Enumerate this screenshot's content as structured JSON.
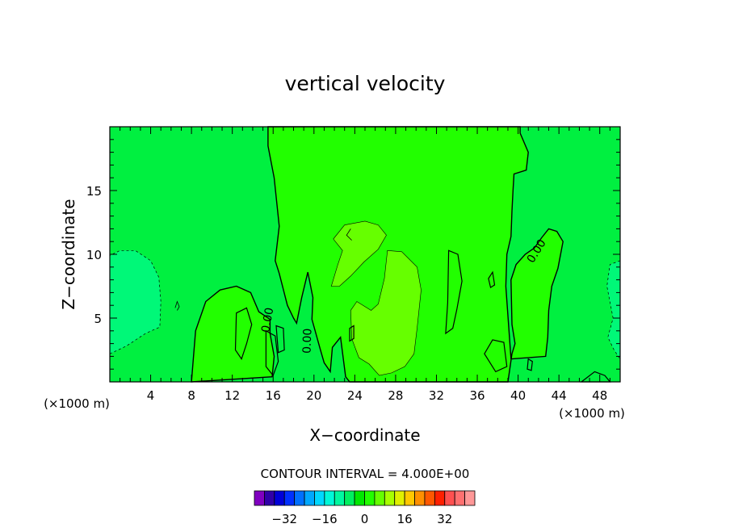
{
  "chart_data": {
    "type": "contour",
    "title": "vertical velocity",
    "xlabel": "X−coordinate",
    "ylabel": "Z−coordinate",
    "x_unit_left": "(×1000 m)",
    "x_unit_right": "(×1000 m)",
    "xlim": [
      0,
      50
    ],
    "ylim": [
      0,
      20
    ],
    "x_ticks": [
      4,
      8,
      12,
      16,
      20,
      24,
      28,
      32,
      36,
      40,
      44,
      48
    ],
    "x_tick_labels": [
      "4",
      "8",
      "12",
      "16",
      "20",
      "24",
      "28",
      "32",
      "36",
      "40",
      "44",
      "48"
    ],
    "y_ticks": [
      5,
      10,
      15
    ],
    "y_tick_labels": [
      "5",
      "10",
      "15"
    ],
    "contour_interval_text": "CONTOUR INTERVAL = 4.000E+00",
    "contour_interval": 4.0,
    "contour_labels": [
      "0.00",
      "0.00",
      "0.00"
    ],
    "regions": [
      {
        "level": "0 to 4",
        "color": "#22ff00",
        "x_range": [
          15.5,
          40
        ],
        "z_range": [
          0,
          20
        ]
      },
      {
        "level": "4 to 8",
        "color": "#66ff00",
        "x_range": [
          21.5,
          30.5
        ],
        "z_range": [
          0.5,
          12.5
        ]
      },
      {
        "level": "-4 to 0",
        "color": "#00f040",
        "x_range": [
          0,
          50
        ],
        "z_range": [
          0,
          20
        ]
      },
      {
        "level": "-8 to -4",
        "color": "#00f878",
        "x_range": [
          0,
          5
        ],
        "z_range": [
          2,
          10.3
        ]
      },
      {
        "level": "-8 to -4",
        "color": "#00f878",
        "x_range": [
          48.7,
          50
        ],
        "z_range": [
          2,
          9.5
        ]
      }
    ],
    "colorbar": {
      "colors": [
        "#8000c0",
        "#3000a8",
        "#0000d8",
        "#0030ff",
        "#0070ff",
        "#00a8ff",
        "#00d8ff",
        "#00f8d8",
        "#00f8a0",
        "#00f060",
        "#00e800",
        "#22ff00",
        "#66ff00",
        "#a8ff00",
        "#e0f000",
        "#ffc800",
        "#ff9000",
        "#ff5800",
        "#ff2000",
        "#ff5050",
        "#ff7070",
        "#ff9898"
      ],
      "tick_values": [
        -32,
        -16,
        0,
        16,
        32
      ],
      "tick_labels": [
        "−32",
        "−16",
        "0",
        "16",
        "32"
      ]
    }
  }
}
